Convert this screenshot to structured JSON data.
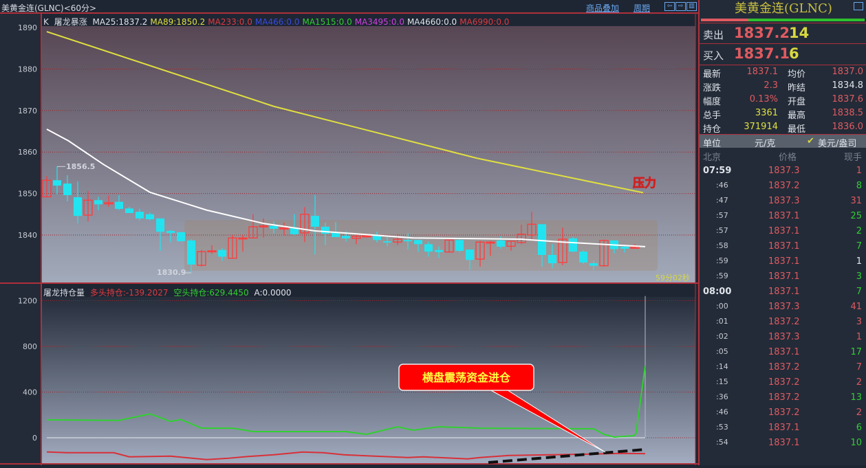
{
  "header": {
    "title": "美黄金连(GLNC)<60分>",
    "overlay_link": "商品叠加",
    "period_link": "周期",
    "nav_icons": [
      "arrow-left-icon",
      "arrow-right-icon",
      "layout-icon"
    ]
  },
  "main_legend": {
    "k": "K",
    "indicator": "屠龙暴涨",
    "ma": [
      {
        "label": "MA25:1837.2",
        "color": "#e0e4ea"
      },
      {
        "label": "MA89:1850.2",
        "color": "#e0e040"
      },
      {
        "label": "MA233:0.0",
        "color": "#e03a40"
      },
      {
        "label": "MA466:0.0",
        "color": "#3a4ae0"
      },
      {
        "label": "MA1515:0.0",
        "color": "#30d030"
      },
      {
        "label": "MA3495:0.0",
        "color": "#d040e0"
      },
      {
        "label": "MA4660:0.0",
        "color": "#e0e4ea"
      },
      {
        "label": "MA6990:0.0",
        "color": "#e03a40"
      }
    ]
  },
  "sub_legend": {
    "title": "屠龙持仓量",
    "long": "多头持仓:-139.2027",
    "short": "空头持仓:629.4450",
    "a": "A:0.0000"
  },
  "annotations": {
    "pressure": "压力",
    "countdown": "59分02秒",
    "callout": "横盘震荡资金进仓",
    "max_label": "1856.5",
    "min_label": "1830.9"
  },
  "chart_data": [
    {
      "type": "candlestick",
      "ylim": [
        1830,
        1890
      ],
      "yticks": [
        "1890",
        "1880",
        "1870",
        "1860",
        "1850",
        "1840"
      ],
      "grid": true,
      "colors": {
        "up": "#ff3a3a",
        "down": "#22e4f0",
        "ma25": "#ffffff",
        "ma89": "#e0e040"
      },
      "ohlc": [
        [
          1849.2,
          1854.2,
          1849.2,
          1853.2
        ],
        [
          1853.2,
          1856.5,
          1849.8,
          1851.9
        ],
        [
          1852.4,
          1854.4,
          1848.1,
          1849.6
        ],
        [
          1849.1,
          1852.9,
          1842.8,
          1844.6
        ],
        [
          1844.8,
          1850.6,
          1843.3,
          1848.4
        ],
        [
          1848.4,
          1849.2,
          1846.0,
          1847.4
        ],
        [
          1847.5,
          1849.5,
          1846.8,
          1847.8
        ],
        [
          1848.0,
          1849.6,
          1846.0,
          1846.3
        ],
        [
          1846.4,
          1846.8,
          1845.3,
          1845.3
        ],
        [
          1845.6,
          1846.3,
          1843.5,
          1844.0
        ],
        [
          1845.0,
          1845.4,
          1843.5,
          1843.8
        ],
        [
          1844.0,
          1844.0,
          1836.2,
          1840.8
        ],
        [
          1841.0,
          1841.2,
          1838.3,
          1840.5
        ],
        [
          1840.7,
          1840.7,
          1838.5,
          1838.5
        ],
        [
          1838.7,
          1839.0,
          1830.9,
          1832.9
        ],
        [
          1832.7,
          1836.4,
          1832.4,
          1836.0
        ],
        [
          1836.2,
          1837.5,
          1835.5,
          1836.2
        ],
        [
          1836.4,
          1836.8,
          1833.8,
          1834.8
        ],
        [
          1834.4,
          1840.0,
          1834.4,
          1839.3
        ],
        [
          1839.3,
          1840.0,
          1836.0,
          1839.3
        ],
        [
          1839.3,
          1845.0,
          1839.3,
          1842.0
        ],
        [
          1842.2,
          1844.0,
          1839.4,
          1842.2
        ],
        [
          1842.2,
          1843.3,
          1840.4,
          1841.5
        ],
        [
          1841.7,
          1843.0,
          1839.8,
          1841.7
        ],
        [
          1841.7,
          1845.0,
          1840.0,
          1840.2
        ],
        [
          1840.5,
          1846.7,
          1838.3,
          1845.0
        ],
        [
          1844.6,
          1849.6,
          1835.3,
          1842.0
        ],
        [
          1842.0,
          1843.0,
          1837.6,
          1840.3
        ],
        [
          1840.7,
          1843.1,
          1839.5,
          1839.5
        ],
        [
          1839.8,
          1840.9,
          1838.4,
          1839.2
        ],
        [
          1839.2,
          1840.4,
          1837.8,
          1839.7
        ],
        [
          1839.8,
          1840.3,
          1839.4,
          1839.8
        ],
        [
          1840.0,
          1840.8,
          1838.2,
          1838.8
        ],
        [
          1838.5,
          1839.7,
          1837.3,
          1838.2
        ],
        [
          1838.3,
          1840.2,
          1837.6,
          1839.0
        ],
        [
          1838.8,
          1840.4,
          1836.5,
          1838.5
        ],
        [
          1838.8,
          1838.8,
          1835.9,
          1837.8
        ],
        [
          1837.8,
          1838.4,
          1834.8,
          1836.0
        ],
        [
          1836.4,
          1837.3,
          1834.5,
          1835.9
        ],
        [
          1835.9,
          1838.8,
          1835.9,
          1838.8
        ],
        [
          1838.8,
          1839.2,
          1835.9,
          1836.2
        ],
        [
          1836.5,
          1836.5,
          1831.6,
          1834.0
        ],
        [
          1834.2,
          1838.6,
          1832.4,
          1838.3
        ],
        [
          1838.3,
          1838.6,
          1835.0,
          1838.3
        ],
        [
          1838.7,
          1839.7,
          1836.7,
          1837.2
        ],
        [
          1837.3,
          1838.5,
          1836.2,
          1838.5
        ],
        [
          1838.2,
          1842.5,
          1837.8,
          1840.2
        ],
        [
          1840.0,
          1845.6,
          1838.6,
          1842.6
        ],
        [
          1842.6,
          1842.6,
          1832.4,
          1835.2
        ],
        [
          1835.2,
          1837.8,
          1832.1,
          1833.2
        ],
        [
          1833.4,
          1841.8,
          1832.7,
          1839.0
        ],
        [
          1839.2,
          1839.5,
          1835.9,
          1836.0
        ],
        [
          1836.0,
          1836.4,
          1833.0,
          1833.4
        ],
        [
          1833.2,
          1833.8,
          1831.6,
          1832.6
        ],
        [
          1832.6,
          1838.9,
          1832.4,
          1838.7
        ],
        [
          1838.7,
          1838.7,
          1835.6,
          1836.6
        ],
        [
          1837.2,
          1837.5,
          1835.8,
          1836.7
        ],
        [
          1836.8,
          1837.8,
          1836.7,
          1837.1
        ]
      ],
      "ma25": [
        [
          0,
          1865.5
        ],
        [
          2.1,
          1862.7
        ],
        [
          5.5,
          1857
        ],
        [
          10,
          1850.3
        ],
        [
          15.5,
          1846
        ],
        [
          21,
          1842.8
        ],
        [
          26,
          1841
        ],
        [
          35.5,
          1839.3
        ],
        [
          46,
          1839
        ],
        [
          50,
          1838.3
        ],
        [
          58,
          1837.2
        ]
      ],
      "ma89": [
        [
          0,
          1889
        ],
        [
          22,
          1871
        ],
        [
          41.7,
          1858.5
        ],
        [
          57.8,
          1850.2
        ]
      ]
    },
    {
      "type": "line",
      "ylim": [
        -250,
        1300
      ],
      "yticks": [
        "1200",
        "800",
        "400",
        "0"
      ],
      "grid": true,
      "series": [
        {
          "name": "空头持仓",
          "color": "#30d030",
          "points": [
            [
              0,
              157
            ],
            [
              7,
              152
            ],
            [
              10,
              209
            ],
            [
              12,
              143
            ],
            [
              13,
              160
            ],
            [
              15,
              84
            ],
            [
              18,
              84
            ],
            [
              20,
              54
            ],
            [
              29,
              54
            ],
            [
              31,
              30
            ],
            [
              34,
              96
            ],
            [
              35.5,
              66
            ],
            [
              38,
              96
            ],
            [
              42,
              84
            ],
            [
              53,
              78
            ],
            [
              54,
              30
            ],
            [
              55,
              6
            ],
            [
              56.9,
              18
            ],
            [
              57.1,
              36
            ],
            [
              58,
              629
            ]
          ]
        },
        {
          "name": "多头持仓",
          "color": "#d83038",
          "points": [
            [
              0,
              -124
            ],
            [
              2,
              -131
            ],
            [
              6.5,
              -131
            ],
            [
              8,
              -167
            ],
            [
              12,
              -161
            ],
            [
              15.5,
              -191
            ],
            [
              17.5,
              -180
            ],
            [
              19.5,
              -164
            ],
            [
              22,
              -149
            ],
            [
              24.8,
              -125
            ],
            [
              26.8,
              -131
            ],
            [
              28.8,
              -149
            ],
            [
              31,
              -158
            ],
            [
              35,
              -173
            ],
            [
              36.5,
              -167
            ],
            [
              40.8,
              -185
            ],
            [
              42,
              -173
            ],
            [
              44.8,
              -155
            ],
            [
              48.8,
              -149
            ],
            [
              52.8,
              -143
            ],
            [
              55.5,
              -137
            ],
            [
              58,
              -139
            ]
          ]
        }
      ],
      "spike": {
        "index": 58,
        "value": 1240
      }
    }
  ],
  "quote": {
    "title": "美黄金连(GLNC)",
    "buy_ratio": 0.29,
    "sell": {
      "label": "卖出",
      "price": "1837.2",
      "vol": "14"
    },
    "buy": {
      "label": "买入",
      "price": "1837.1",
      "vol": "6"
    },
    "stats": [
      {
        "l1": "最新",
        "v1": "1837.1",
        "c1": "#e05a60",
        "l2": "均价",
        "v2": "1837.0",
        "c2": "#e05a60"
      },
      {
        "l1": "涨跌",
        "v1": "2.3",
        "c1": "#e05a60",
        "l2": "昨结",
        "v2": "1834.8",
        "c2": "#e0e4ea"
      },
      {
        "l1": "幅度",
        "v1": "0.13%",
        "c1": "#e05a60",
        "l2": "开盘",
        "v2": "1837.6",
        "c2": "#e05a60"
      },
      {
        "l1": "总手",
        "v1": "3361",
        "c1": "#e0e040",
        "l2": "最高",
        "v2": "1838.5",
        "c2": "#e05a60"
      },
      {
        "l1": "持仓",
        "v1": "371914",
        "c1": "#e0e040",
        "l2": "最低",
        "v2": "1836.0",
        "c2": "#e05a60"
      }
    ],
    "unit": {
      "label": "单位",
      "opt1": "元/克",
      "opt2": "美元/盎司",
      "check": "✔"
    },
    "table_head": {
      "time": "北京",
      "price": "价格",
      "vol": "现手"
    },
    "ticks": [
      {
        "t": "07:59",
        "p": "1837.3",
        "v": "1",
        "vc": "#e05a60",
        "bold": true
      },
      {
        "t": ":46",
        "p": "1837.2",
        "v": "8",
        "vc": "#30d030"
      },
      {
        "t": ":47",
        "p": "1837.3",
        "v": "31",
        "vc": "#e05a60"
      },
      {
        "t": ":57",
        "p": "1837.1",
        "v": "25",
        "vc": "#30d030"
      },
      {
        "t": ":57",
        "p": "1837.1",
        "v": "2",
        "vc": "#30d030"
      },
      {
        "t": ":58",
        "p": "1837.1",
        "v": "7",
        "vc": "#30d030"
      },
      {
        "t": ":59",
        "p": "1837.1",
        "v": "1",
        "vc": "#e0e4ea"
      },
      {
        "t": ":59",
        "p": "1837.1",
        "v": "3",
        "vc": "#30d030"
      },
      {
        "t": "08:00",
        "p": "1837.1",
        "v": "7",
        "vc": "#30d030",
        "bold": true
      },
      {
        "t": ":00",
        "p": "1837.3",
        "v": "41",
        "vc": "#e05a60"
      },
      {
        "t": ":01",
        "p": "1837.2",
        "v": "3",
        "vc": "#e05a60"
      },
      {
        "t": ":02",
        "p": "1837.3",
        "v": "1",
        "vc": "#e05a60"
      },
      {
        "t": ":05",
        "p": "1837.1",
        "v": "17",
        "vc": "#30d030"
      },
      {
        "t": ":14",
        "p": "1837.2",
        "v": "7",
        "vc": "#e05a60"
      },
      {
        "t": ":15",
        "p": "1837.2",
        "v": "2",
        "vc": "#e05a60"
      },
      {
        "t": ":36",
        "p": "1837.2",
        "v": "13",
        "vc": "#30d030"
      },
      {
        "t": ":46",
        "p": "1837.2",
        "v": "2",
        "vc": "#e05a60"
      },
      {
        "t": ":53",
        "p": "1837.1",
        "v": "6",
        "vc": "#30d030"
      },
      {
        "t": ":54",
        "p": "1837.1",
        "v": "10",
        "vc": "#30d030"
      }
    ]
  }
}
